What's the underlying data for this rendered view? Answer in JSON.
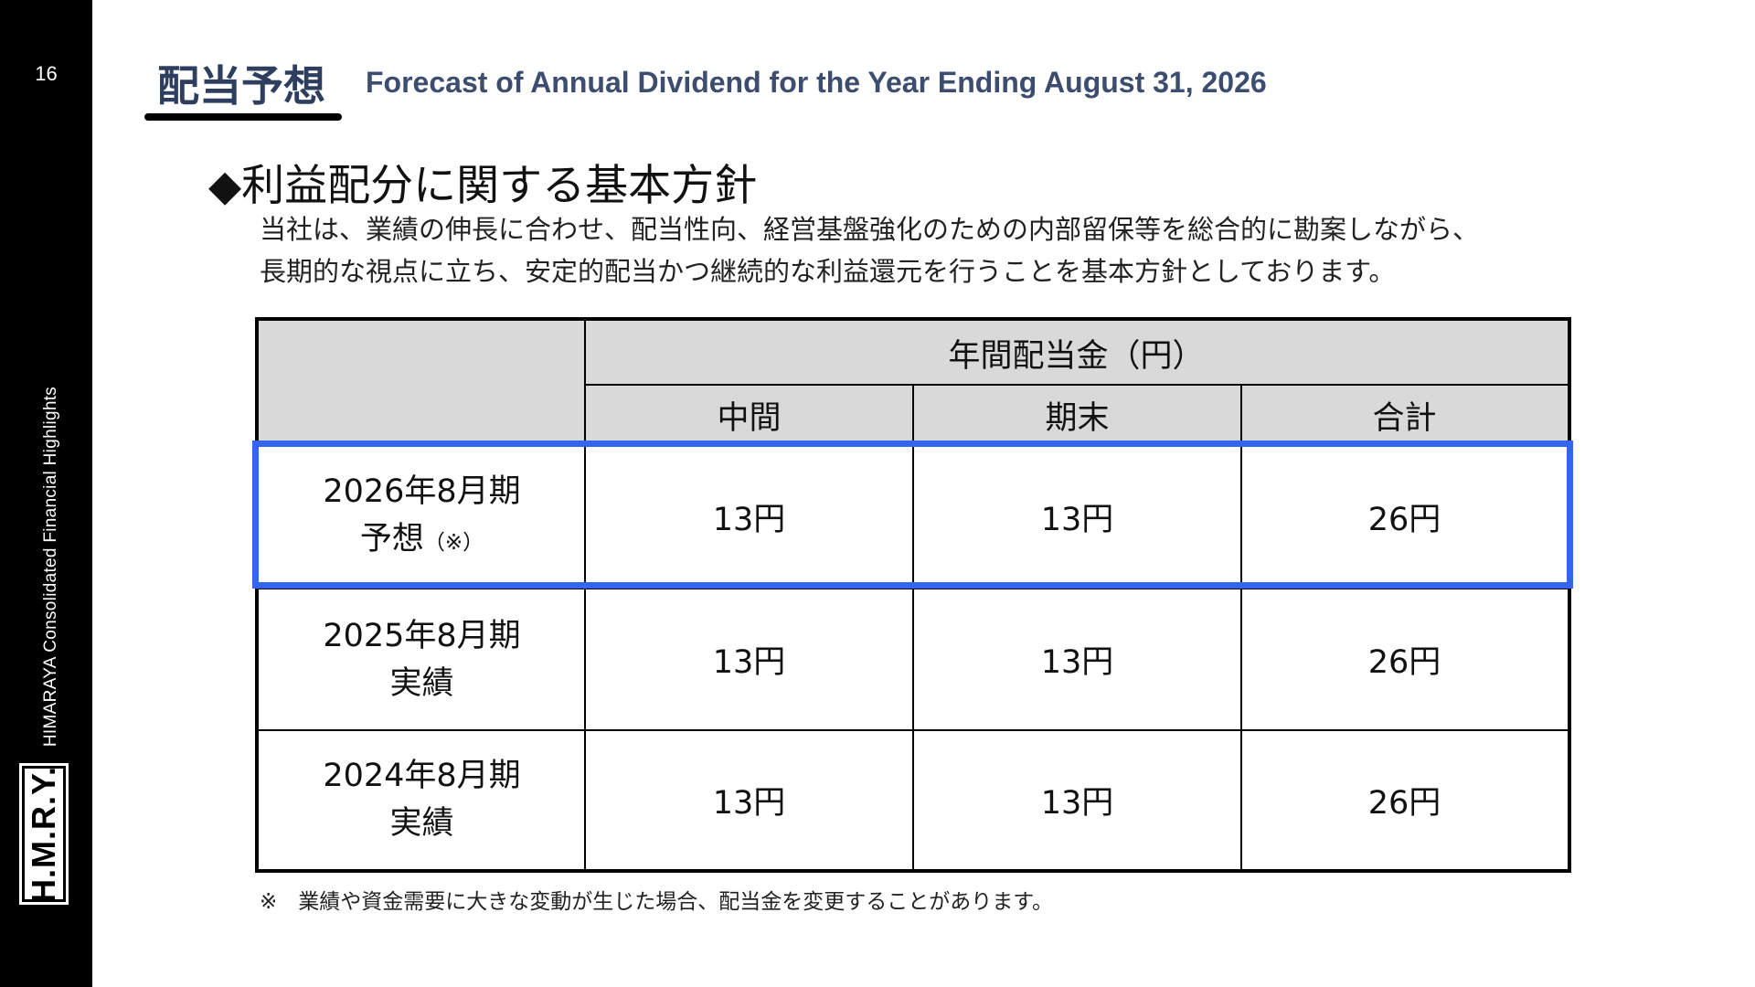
{
  "slide": {
    "page_number": "16",
    "side_caption": "HIMARAYA  Consolidated Financial Highlights",
    "logo_text": "H.M.R.Y."
  },
  "header": {
    "title_jp": "配当予想",
    "title_en": "Forecast of Annual Dividend for the Year Ending August 31, 2026"
  },
  "section": {
    "heading": "◆利益配分に関する基本方針",
    "policy_line1": "当社は、業績の伸長に合わせ、配当性向、経営基盤強化のための内部留保等を総合的に勘案しながら、",
    "policy_line2": "長期的な視点に立ち、安定的配当かつ継続的な利益還元を行うことを基本方針としております。"
  },
  "table": {
    "group_header": "年間配当金（円）",
    "columns": [
      "中間",
      "期末",
      "合計"
    ],
    "rows": [
      {
        "period": "2026年8月期",
        "status": "予想",
        "note": "（※）",
        "interim": "13円",
        "year_end": "13円",
        "total": "26円",
        "highlighted": true
      },
      {
        "period": "2025年8月期",
        "status": "実績",
        "note": "",
        "interim": "13円",
        "year_end": "13円",
        "total": "26円",
        "highlighted": false
      },
      {
        "period": "2024年8月期",
        "status": "実績",
        "note": "",
        "interim": "13円",
        "year_end": "13円",
        "total": "26円",
        "highlighted": false
      }
    ]
  },
  "footnote": "※　業績や資金需要に大きな変動が生じた場合、配当金を変更することがあります。",
  "colors": {
    "sidebar": "#000000",
    "title": "#2e3e5e",
    "header_fill": "#d9d9d9",
    "highlight": "#3366ee"
  }
}
